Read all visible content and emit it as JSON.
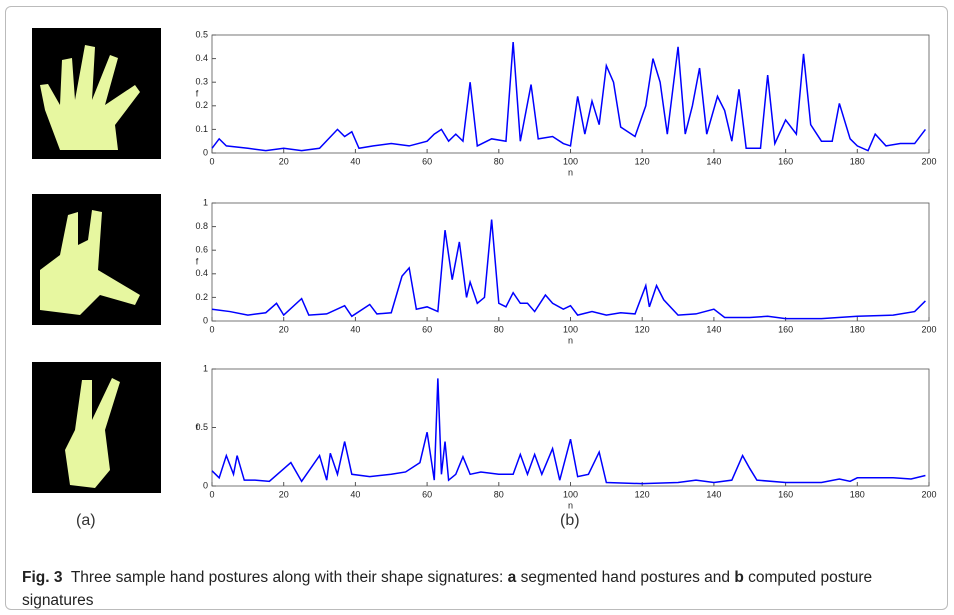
{
  "chart_data": [
    {
      "type": "line",
      "ylabel": "f",
      "xlabel": "n",
      "color": "#0000ff",
      "xlim": [
        0,
        200
      ],
      "ylim": [
        0,
        0.5
      ],
      "xticks": [
        0,
        20,
        40,
        60,
        80,
        100,
        120,
        140,
        160,
        180,
        200
      ],
      "yticks": [
        0,
        0.1,
        0.2,
        0.3,
        0.4,
        0.5
      ],
      "x": [
        0,
        2,
        4,
        10,
        15,
        20,
        25,
        30,
        35,
        37,
        39,
        41,
        45,
        50,
        55,
        60,
        62,
        64,
        66,
        68,
        70,
        72,
        74,
        78,
        82,
        84,
        86,
        89,
        91,
        95,
        98,
        100,
        102,
        104,
        106,
        108,
        110,
        112,
        114,
        118,
        121,
        123,
        125,
        127,
        130,
        132,
        134,
        136,
        138,
        141,
        143,
        145,
        147,
        149,
        153,
        155,
        157,
        160,
        163,
        165,
        167,
        170,
        173,
        175,
        178,
        180,
        183,
        185,
        188,
        192,
        196,
        199
      ],
      "values": [
        0.02,
        0.06,
        0.03,
        0.02,
        0.01,
        0.02,
        0.01,
        0.02,
        0.1,
        0.07,
        0.09,
        0.02,
        0.03,
        0.04,
        0.03,
        0.05,
        0.08,
        0.1,
        0.05,
        0.08,
        0.05,
        0.3,
        0.03,
        0.06,
        0.05,
        0.47,
        0.05,
        0.29,
        0.06,
        0.07,
        0.04,
        0.03,
        0.24,
        0.08,
        0.22,
        0.12,
        0.37,
        0.3,
        0.11,
        0.07,
        0.2,
        0.4,
        0.3,
        0.08,
        0.45,
        0.08,
        0.2,
        0.36,
        0.08,
        0.24,
        0.18,
        0.05,
        0.27,
        0.02,
        0.02,
        0.33,
        0.04,
        0.14,
        0.08,
        0.42,
        0.12,
        0.05,
        0.05,
        0.21,
        0.06,
        0.03,
        0.01,
        0.08,
        0.03,
        0.04,
        0.04,
        0.1
      ]
    },
    {
      "type": "line",
      "ylabel": "f",
      "xlabel": "n",
      "color": "#0000ff",
      "xlim": [
        0,
        200
      ],
      "ylim": [
        0,
        1
      ],
      "xticks": [
        0,
        20,
        40,
        60,
        80,
        100,
        120,
        140,
        160,
        180,
        200
      ],
      "yticks": [
        0,
        0.2,
        0.4,
        0.6,
        0.8,
        1
      ],
      "x": [
        0,
        5,
        10,
        15,
        18,
        20,
        25,
        27,
        32,
        37,
        39,
        44,
        46,
        50,
        53,
        55,
        57,
        60,
        63,
        65,
        67,
        69,
        71,
        72,
        74,
        76,
        78,
        80,
        82,
        84,
        86,
        88,
        90,
        93,
        95,
        98,
        100,
        102,
        106,
        110,
        114,
        118,
        121,
        122,
        124,
        126,
        130,
        135,
        140,
        143,
        150,
        155,
        160,
        170,
        180,
        190,
        196,
        199
      ],
      "values": [
        0.1,
        0.08,
        0.05,
        0.07,
        0.15,
        0.05,
        0.19,
        0.05,
        0.06,
        0.13,
        0.04,
        0.14,
        0.06,
        0.07,
        0.38,
        0.45,
        0.1,
        0.12,
        0.08,
        0.77,
        0.35,
        0.67,
        0.2,
        0.33,
        0.15,
        0.2,
        0.86,
        0.15,
        0.12,
        0.24,
        0.15,
        0.15,
        0.08,
        0.22,
        0.15,
        0.1,
        0.13,
        0.05,
        0.08,
        0.05,
        0.07,
        0.06,
        0.3,
        0.12,
        0.3,
        0.18,
        0.05,
        0.06,
        0.1,
        0.03,
        0.03,
        0.04,
        0.02,
        0.02,
        0.04,
        0.05,
        0.08,
        0.17
      ]
    },
    {
      "type": "line",
      "ylabel": "f",
      "xlabel": "n",
      "color": "#0000ff",
      "xlim": [
        0,
        200
      ],
      "ylim": [
        0,
        1
      ],
      "xticks": [
        0,
        20,
        40,
        60,
        80,
        100,
        120,
        140,
        160,
        180,
        200
      ],
      "yticks": [
        0,
        0.5,
        1
      ],
      "x": [
        0,
        2,
        4,
        6,
        7,
        9,
        12,
        16,
        22,
        25,
        30,
        32,
        33,
        35,
        37,
        39,
        44,
        50,
        54,
        58,
        60,
        62,
        63,
        64,
        65,
        66,
        68,
        70,
        72,
        75,
        80,
        84,
        86,
        88,
        90,
        92,
        95,
        97,
        100,
        102,
        105,
        108,
        110,
        120,
        130,
        135,
        140,
        145,
        148,
        150,
        152,
        160,
        170,
        175,
        178,
        180,
        190,
        195,
        199
      ],
      "values": [
        0.13,
        0.07,
        0.26,
        0.1,
        0.26,
        0.05,
        0.05,
        0.04,
        0.2,
        0.04,
        0.26,
        0.05,
        0.28,
        0.1,
        0.38,
        0.1,
        0.08,
        0.1,
        0.12,
        0.2,
        0.46,
        0.05,
        0.92,
        0.1,
        0.38,
        0.05,
        0.1,
        0.25,
        0.1,
        0.12,
        0.1,
        0.1,
        0.27,
        0.1,
        0.27,
        0.1,
        0.32,
        0.05,
        0.4,
        0.08,
        0.1,
        0.29,
        0.03,
        0.02,
        0.03,
        0.05,
        0.03,
        0.05,
        0.26,
        0.15,
        0.05,
        0.03,
        0.03,
        0.06,
        0.04,
        0.07,
        0.07,
        0.06,
        0.09
      ]
    }
  ],
  "panel_labels": [
    "(a)",
    "(b)"
  ],
  "caption": {
    "label": "Fig. 3",
    "parts": [
      "Three sample hand postures along with their shape signatures: ",
      "a",
      " segmented hand postures and ",
      "b",
      " computed posture signatures"
    ]
  }
}
